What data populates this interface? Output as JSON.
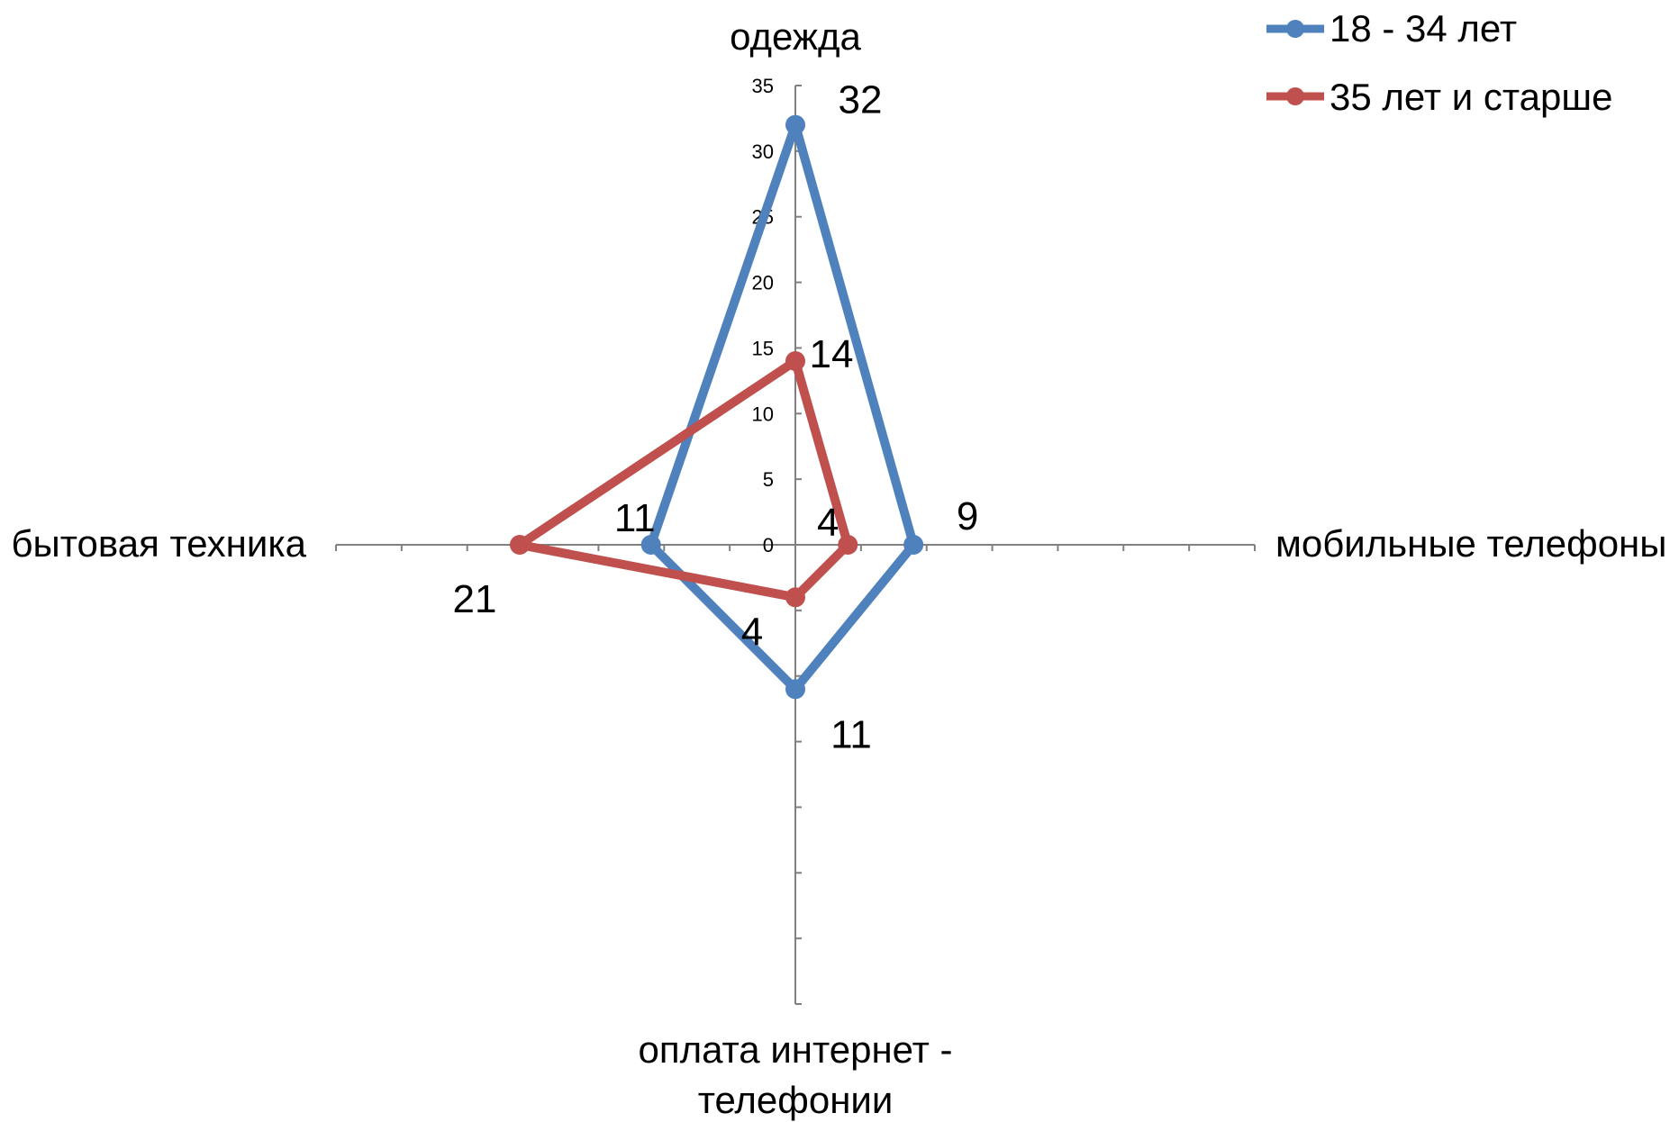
{
  "chart_data": {
    "type": "radar",
    "axes": [
      "одежда",
      "мобильные телефоны",
      "оплата интернет - телефонии",
      "бытовая техника"
    ],
    "axis_label_lines": {
      "одежда": [
        "одежда"
      ],
      "мобильные телефоны": [
        "мобильные телефоны"
      ],
      "оплата интернет - телефонии": [
        "оплата интернет -",
        "телефонии"
      ],
      "бытовая техника": [
        "бытовая техника"
      ]
    },
    "rlim": [
      0,
      35
    ],
    "ticks": [
      "0",
      "5",
      "10",
      "15",
      "20",
      "25",
      "30",
      "35"
    ],
    "tick_values": [
      0,
      5,
      10,
      15,
      20,
      25,
      30,
      35
    ],
    "series": [
      {
        "name": "18 - 34 лет",
        "color": "#4f81bd",
        "values": [
          32,
          9,
          11,
          11
        ],
        "labels": [
          "32",
          "9",
          "11",
          "11"
        ]
      },
      {
        "name": "35 лет и старше",
        "color": "#c0504d",
        "values": [
          14,
          4,
          4,
          21
        ],
        "labels": [
          "14",
          "4",
          "4",
          "21"
        ]
      }
    ],
    "legend_position": "top-right",
    "axis_color": "#808080"
  }
}
